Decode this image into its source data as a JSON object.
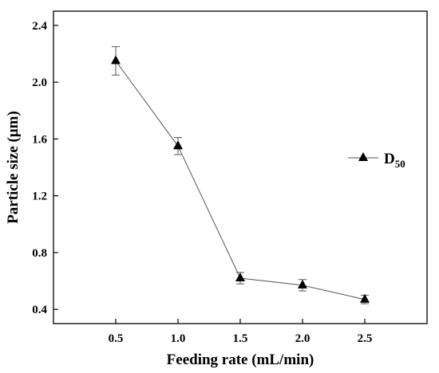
{
  "chart_data": {
    "type": "line",
    "title": "",
    "xlabel": "Feeding rate (mL/min)",
    "ylabel": "Particle size (μm)",
    "xlim": [
      0.0,
      3.0
    ],
    "ylim": [
      0.3,
      2.5
    ],
    "x_ticks": [
      "0.5",
      "1.0",
      "1.5",
      "2.0",
      "2.5"
    ],
    "y_ticks": [
      "0.4",
      "0.8",
      "1.2",
      "1.6",
      "2.0",
      "2.4"
    ],
    "grid": false,
    "legend_position": "right",
    "marker": "filled-triangle",
    "colors": {
      "line": "#555555",
      "marker": "#000000",
      "axis": "#000000"
    },
    "series": [
      {
        "name": "D",
        "name_subscript": "50",
        "x": [
          0.5,
          1.0,
          1.5,
          2.0,
          2.5
        ],
        "y": [
          2.15,
          1.55,
          0.62,
          0.57,
          0.47
        ],
        "error": [
          0.1,
          0.06,
          0.04,
          0.04,
          0.03
        ]
      }
    ]
  }
}
